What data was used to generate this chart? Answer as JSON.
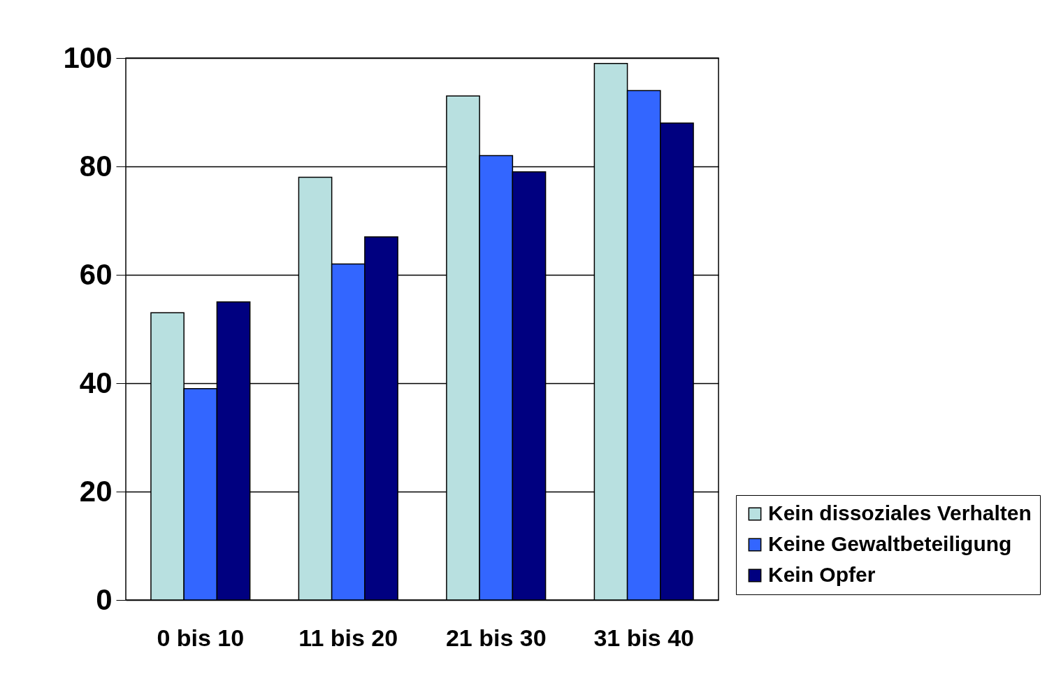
{
  "chart_data": {
    "type": "bar",
    "categories": [
      "0 bis 10",
      "11 bis 20",
      "21 bis 30",
      "31 bis 40"
    ],
    "series": [
      {
        "name": "Kein dissoziales Verhalten",
        "color": "#b8e0e0",
        "values": [
          53,
          78,
          93,
          99
        ]
      },
      {
        "name": "Keine Gewaltbeteiligung",
        "color": "#3366ff",
        "values": [
          39,
          62,
          82,
          94
        ]
      },
      {
        "name": "Kein Opfer",
        "color": "#000080",
        "values": [
          55,
          67,
          79,
          88
        ]
      }
    ],
    "ylim": [
      0,
      100
    ],
    "yticks": [
      0,
      20,
      40,
      60,
      80,
      100
    ],
    "grid": "y",
    "legend": "bottom right"
  }
}
